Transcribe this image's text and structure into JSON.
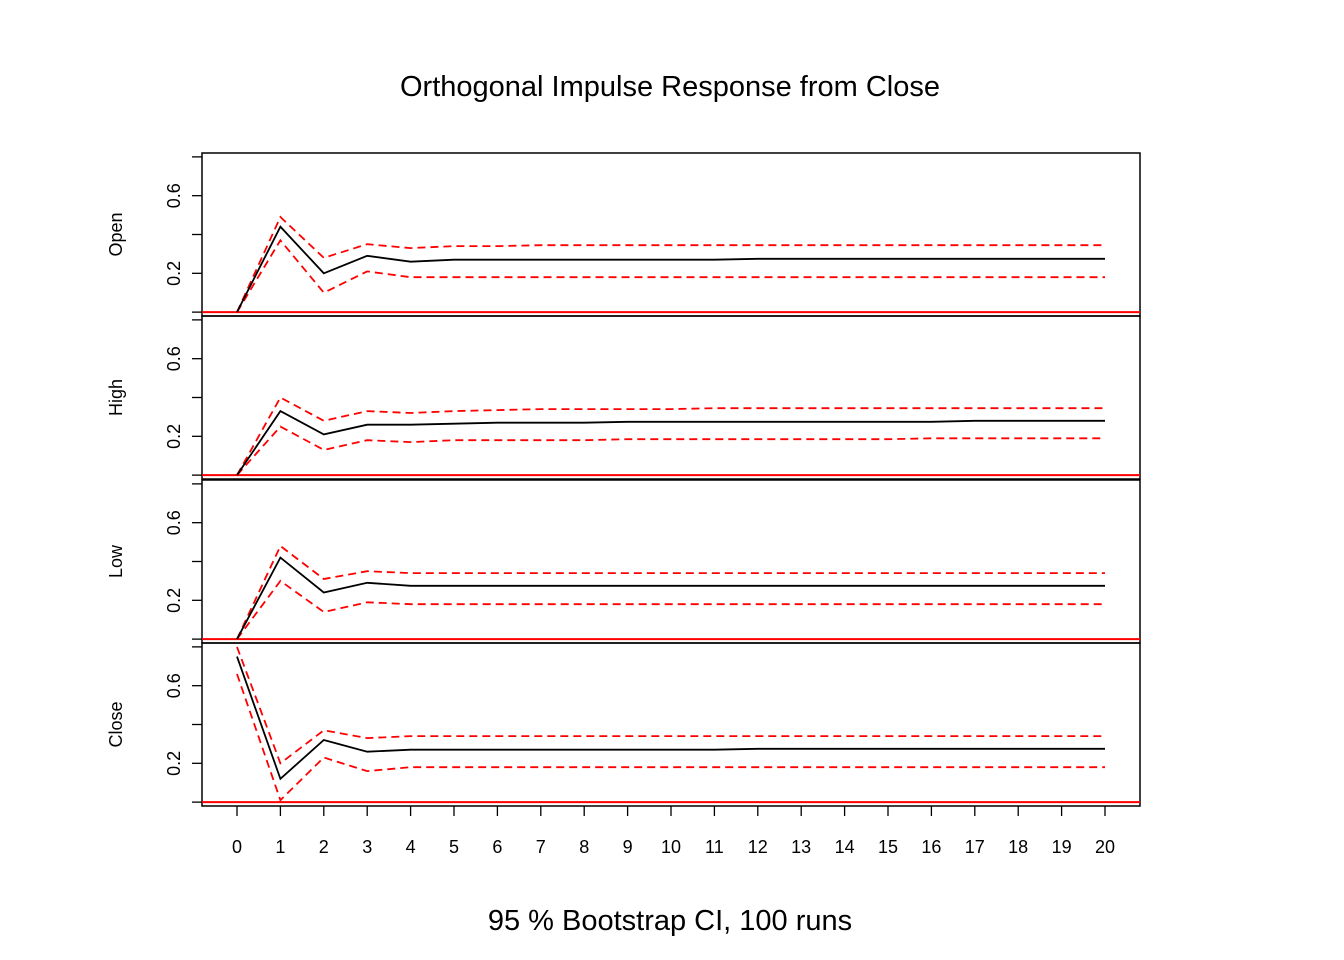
{
  "chart_data": {
    "type": "line",
    "title": "Orthogonal Impulse Response from Close",
    "xlabel": "95 % Bootstrap CI,  100 runs",
    "x": [
      0,
      1,
      2,
      3,
      4,
      5,
      6,
      7,
      8,
      9,
      10,
      11,
      12,
      13,
      14,
      15,
      16,
      17,
      18,
      19,
      20
    ],
    "x_tick_labels": [
      "0",
      "1",
      "2",
      "3",
      "4",
      "5",
      "6",
      "7",
      "8",
      "9",
      "10",
      "11",
      "12",
      "13",
      "14",
      "15",
      "16",
      "17",
      "18",
      "19",
      "20"
    ],
    "y_tick_labels": [
      "0.2",
      "0.6"
    ],
    "y_ticks": [
      0.2,
      0.6
    ],
    "ylim": [
      -0.02,
      0.82
    ],
    "zero_line": 0,
    "colors": {
      "irf": "#000000",
      "ci": "#ff0000",
      "zero": "#ff0000",
      "axis": "#000000"
    },
    "panels": [
      {
        "name": "Open",
        "irf": [
          0,
          0.44,
          0.2,
          0.29,
          0.26,
          0.27,
          0.27,
          0.27,
          0.27,
          0.27,
          0.27,
          0.27,
          0.275,
          0.275,
          0.275,
          0.275,
          0.275,
          0.275,
          0.275,
          0.275,
          0.275
        ],
        "upper": [
          0,
          0.49,
          0.28,
          0.35,
          0.33,
          0.34,
          0.34,
          0.345,
          0.345,
          0.345,
          0.345,
          0.345,
          0.345,
          0.345,
          0.345,
          0.345,
          0.345,
          0.345,
          0.345,
          0.345,
          0.345
        ],
        "lower": [
          0,
          0.37,
          0.1,
          0.21,
          0.18,
          0.18,
          0.18,
          0.18,
          0.18,
          0.18,
          0.18,
          0.18,
          0.18,
          0.18,
          0.18,
          0.18,
          0.18,
          0.18,
          0.18,
          0.18,
          0.18
        ]
      },
      {
        "name": "High",
        "irf": [
          0,
          0.33,
          0.21,
          0.26,
          0.26,
          0.265,
          0.27,
          0.27,
          0.27,
          0.275,
          0.275,
          0.275,
          0.275,
          0.275,
          0.275,
          0.275,
          0.275,
          0.28,
          0.28,
          0.28,
          0.28
        ],
        "upper": [
          0,
          0.4,
          0.28,
          0.33,
          0.32,
          0.33,
          0.335,
          0.34,
          0.34,
          0.34,
          0.34,
          0.345,
          0.345,
          0.345,
          0.345,
          0.345,
          0.345,
          0.345,
          0.345,
          0.345,
          0.345
        ],
        "lower": [
          0,
          0.25,
          0.13,
          0.18,
          0.17,
          0.18,
          0.18,
          0.18,
          0.18,
          0.185,
          0.185,
          0.185,
          0.185,
          0.185,
          0.185,
          0.185,
          0.19,
          0.19,
          0.19,
          0.19,
          0.19
        ]
      },
      {
        "name": "Low",
        "irf": [
          0,
          0.42,
          0.24,
          0.29,
          0.275,
          0.275,
          0.275,
          0.275,
          0.275,
          0.275,
          0.275,
          0.275,
          0.275,
          0.275,
          0.275,
          0.275,
          0.275,
          0.275,
          0.275,
          0.275,
          0.275
        ],
        "upper": [
          0,
          0.48,
          0.31,
          0.35,
          0.34,
          0.34,
          0.34,
          0.34,
          0.34,
          0.34,
          0.34,
          0.34,
          0.34,
          0.34,
          0.34,
          0.34,
          0.34,
          0.34,
          0.34,
          0.34,
          0.34
        ],
        "lower": [
          0,
          0.3,
          0.14,
          0.19,
          0.18,
          0.18,
          0.18,
          0.18,
          0.18,
          0.18,
          0.18,
          0.18,
          0.18,
          0.18,
          0.18,
          0.18,
          0.18,
          0.18,
          0.18,
          0.18,
          0.18
        ]
      },
      {
        "name": "Close",
        "irf": [
          0.75,
          0.12,
          0.32,
          0.26,
          0.27,
          0.27,
          0.27,
          0.27,
          0.27,
          0.27,
          0.27,
          0.27,
          0.275,
          0.275,
          0.275,
          0.275,
          0.275,
          0.275,
          0.275,
          0.275,
          0.275
        ],
        "upper": [
          0.8,
          0.2,
          0.37,
          0.33,
          0.34,
          0.34,
          0.34,
          0.34,
          0.34,
          0.34,
          0.34,
          0.34,
          0.34,
          0.34,
          0.34,
          0.34,
          0.34,
          0.34,
          0.34,
          0.34,
          0.34
        ],
        "lower": [
          0.66,
          0.01,
          0.23,
          0.16,
          0.18,
          0.18,
          0.18,
          0.18,
          0.18,
          0.18,
          0.18,
          0.18,
          0.18,
          0.18,
          0.18,
          0.18,
          0.18,
          0.18,
          0.18,
          0.18,
          0.18
        ]
      }
    ]
  }
}
